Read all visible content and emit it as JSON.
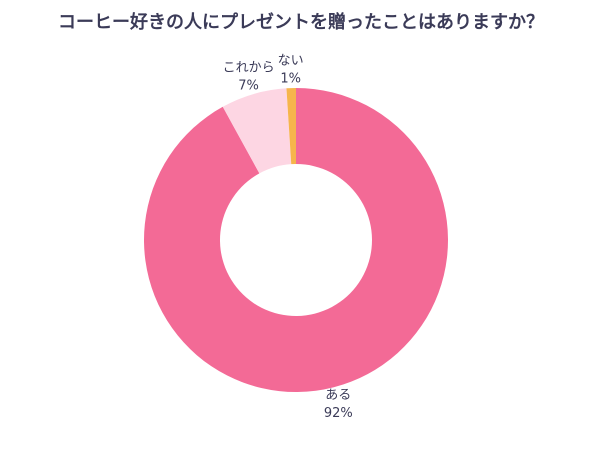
{
  "chart_data": {
    "type": "donut",
    "title": "コーヒー好きの人にプレゼントを贈ったことはありますか？",
    "categories": [
      "ある",
      "これから",
      "ない"
    ],
    "values": [
      92,
      7,
      1
    ],
    "value_labels": [
      "92%",
      "7%",
      "1%"
    ],
    "colors": [
      "#f36a96",
      "#fdd6e3",
      "#f6b54c"
    ]
  }
}
